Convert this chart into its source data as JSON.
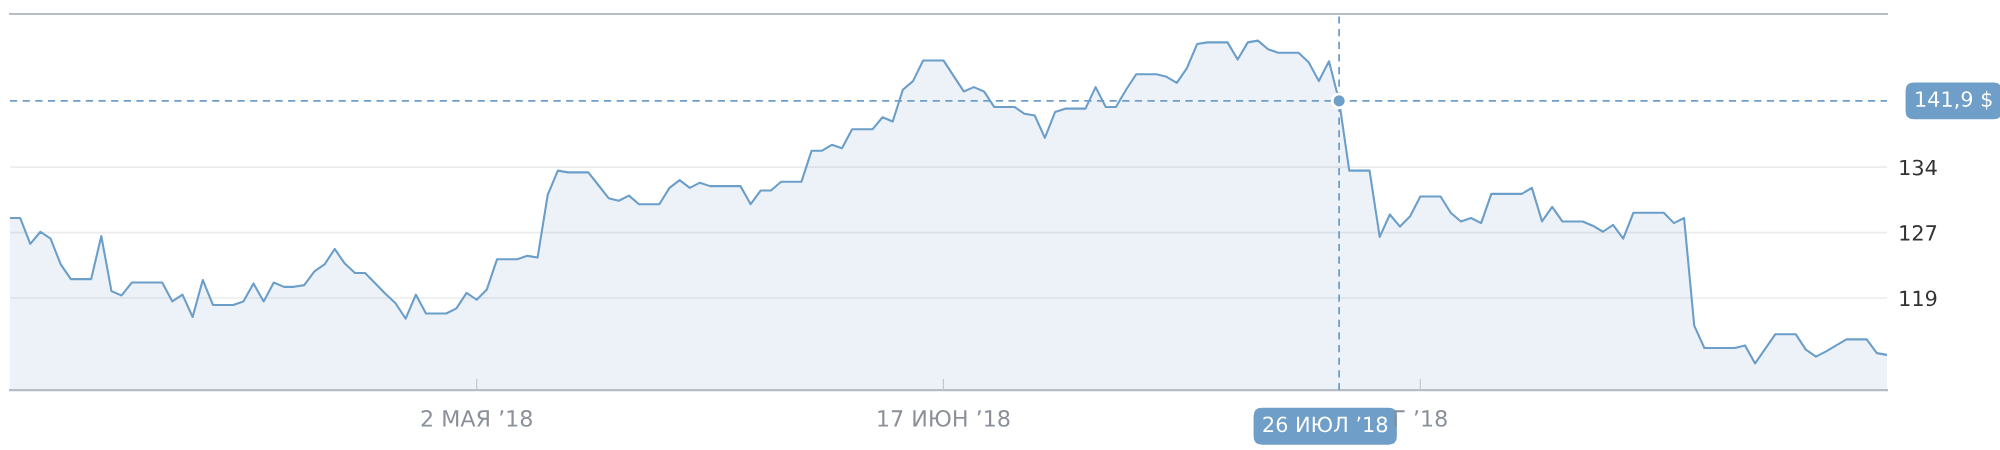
{
  "chart_data": {
    "type": "area",
    "x": [
      "2018-03-17",
      "2018-03-18",
      "2018-03-19",
      "2018-03-20",
      "2018-03-21",
      "2018-03-22",
      "2018-03-23",
      "2018-03-25",
      "2018-03-26",
      "2018-03-27",
      "2018-03-28",
      "2018-03-29",
      "2018-04-01",
      "2018-04-02",
      "2018-04-03",
      "2018-04-04",
      "2018-04-05",
      "2018-04-06",
      "2018-04-08",
      "2018-04-09",
      "2018-04-10",
      "2018-04-11",
      "2018-04-12",
      "2018-04-13",
      "2018-04-14",
      "2018-04-15",
      "2018-04-16",
      "2018-04-17",
      "2018-04-18",
      "2018-04-19",
      "2018-04-20",
      "2018-04-21",
      "2018-04-23",
      "2018-04-24",
      "2018-04-25",
      "2018-04-26",
      "2018-04-27",
      "2018-04-29",
      "2018-04-30",
      "2018-05-01",
      "2018-05-02",
      "2018-05-03",
      "2018-05-04",
      "2018-05-06",
      "2018-05-07",
      "2018-05-08",
      "2018-05-09",
      "2018-05-10",
      "2018-05-11",
      "2018-05-13",
      "2018-05-14",
      "2018-05-15",
      "2018-05-16",
      "2018-05-17",
      "2018-05-18",
      "2018-05-20",
      "2018-05-21",
      "2018-05-22",
      "2018-05-23",
      "2018-05-24",
      "2018-05-25",
      "2018-05-28",
      "2018-05-29",
      "2018-05-30",
      "2018-05-31",
      "2018-06-01",
      "2018-06-03",
      "2018-06-04",
      "2018-06-05",
      "2018-06-06",
      "2018-06-07",
      "2018-06-08",
      "2018-06-10",
      "2018-06-11",
      "2018-06-12",
      "2018-06-13",
      "2018-06-14",
      "2018-06-15",
      "2018-06-17",
      "2018-06-19",
      "2018-06-20",
      "2018-06-21",
      "2018-06-22",
      "2018-06-24",
      "2018-06-25",
      "2018-06-26",
      "2018-06-27",
      "2018-06-28",
      "2018-06-29",
      "2018-07-01",
      "2018-07-02",
      "2018-07-03",
      "2018-07-04",
      "2018-07-05",
      "2018-07-06",
      "2018-07-08",
      "2018-07-09",
      "2018-07-10",
      "2018-07-11",
      "2018-07-12",
      "2018-07-13",
      "2018-07-15",
      "2018-07-16",
      "2018-07-17",
      "2018-07-18",
      "2018-07-19",
      "2018-07-20",
      "2018-07-22",
      "2018-07-23",
      "2018-07-24",
      "2018-07-25",
      "2018-07-26",
      "2018-07-27",
      "2018-07-29",
      "2018-07-30",
      "2018-07-31",
      "2018-08-01",
      "2018-08-02",
      "2018-08-03",
      "2018-08-05",
      "2018-08-06",
      "2018-08-07",
      "2018-08-08",
      "2018-08-09",
      "2018-08-10",
      "2018-08-13",
      "2018-08-14",
      "2018-08-15",
      "2018-08-16",
      "2018-08-17",
      "2018-08-19",
      "2018-08-20",
      "2018-08-21",
      "2018-08-22",
      "2018-08-23",
      "2018-08-24",
      "2018-08-27",
      "2018-08-28",
      "2018-08-29",
      "2018-08-30",
      "2018-08-31",
      "2018-09-03",
      "2018-09-04",
      "2018-09-05",
      "2018-09-07",
      "2018-09-09",
      "2018-09-10",
      "2018-09-11",
      "2018-09-12",
      "2018-09-14",
      "2018-09-16",
      "2018-09-17",
      "2018-09-18"
    ],
    "series": [
      {
        "color": "#6b9ec9",
        "values": [
          128.3,
          128.3,
          125.3,
          126.7,
          125.9,
          122.9,
          121.2,
          121.2,
          126.2,
          119.8,
          119.3,
          120.8,
          120.8,
          118.6,
          119.4,
          116.8,
          121.1,
          118.2,
          118.2,
          118.6,
          120.7,
          118.6,
          120.8,
          120.3,
          120.3,
          120.5,
          122.1,
          122.9,
          124.7,
          123.0,
          121.9,
          121.9,
          119.5,
          118.4,
          116.6,
          119.4,
          117.2,
          117.2,
          117.8,
          119.6,
          118.8,
          120.0,
          123.5,
          123.5,
          123.9,
          123.7,
          131.0,
          133.8,
          133.6,
          133.6,
          132.1,
          130.6,
          130.3,
          130.9,
          129.9,
          129.9,
          131.8,
          132.7,
          131.8,
          132.4,
          132.0,
          132.0,
          129.9,
          131.5,
          131.5,
          132.5,
          132.5,
          136.1,
          136.1,
          136.8,
          136.4,
          138.6,
          138.6,
          140.0,
          139.5,
          143.2,
          144.2,
          146.6,
          146.6,
          143.0,
          143.5,
          143.0,
          141.2,
          141.2,
          140.4,
          140.2,
          137.6,
          140.6,
          141.0,
          141.0,
          143.5,
          141.2,
          141.2,
          143.2,
          145.0,
          145.0,
          144.7,
          144.0,
          145.7,
          148.5,
          148.7,
          148.7,
          146.7,
          148.7,
          148.9,
          147.9,
          147.5,
          147.5,
          146.4,
          144.2,
          146.5,
          141.9,
          133.8,
          133.8,
          126.1,
          128.7,
          127.3,
          128.5,
          130.8,
          130.8,
          128.9,
          127.9,
          128.3,
          127.7,
          131.1,
          131.1,
          131.8,
          127.9,
          129.6,
          127.9,
          127.9,
          127.4,
          126.7,
          127.5,
          125.9,
          128.9,
          128.9,
          127.7,
          128.3,
          115.8,
          113.2,
          113.2,
          113.5,
          111.4,
          114.8,
          114.8,
          113.0,
          112.2,
          112.8,
          114.2,
          114.2,
          112.6,
          112.4
        ]
      }
    ],
    "xlim": [
      "2018-03-17",
      "2018-09-18"
    ],
    "xticks": [
      {
        "value": "2018-05-02",
        "label": "2 МАЯ ’18"
      },
      {
        "value": "2018-06-17",
        "label": "17 ИЮН ’18"
      },
      {
        "value": "2018-08-03",
        "label": "Г ’18"
      }
    ],
    "ylim": [
      108.3,
      152.0
    ],
    "yticks": [
      {
        "value": 119.0,
        "label": "119"
      },
      {
        "value": 126.6,
        "label": "127"
      },
      {
        "value": 134.2,
        "label": "134"
      }
    ],
    "grid": "y",
    "ref_lines": [
      {
        "axis": "x",
        "value": "2018-07-26",
        "label": "26 ИЮЛ ’18",
        "color": "#6f9fc8",
        "line_style": "dashed"
      },
      {
        "axis": "y",
        "value": 141.9,
        "label": "141,9 $",
        "color": "#6f9fc8",
        "line_style": "dashed"
      }
    ]
  }
}
